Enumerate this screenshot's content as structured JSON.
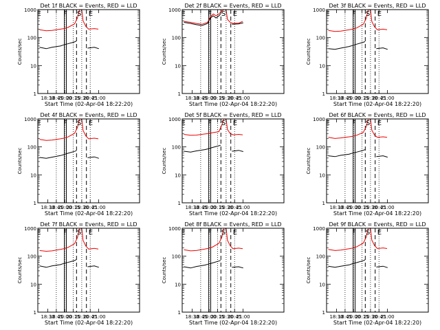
{
  "figure": {
    "xlabel": "Start Time (02-Apr-04 18:22:20)",
    "ylabel": "Counts/sec"
  },
  "axes": {
    "yscale": "log",
    "ylim": [
      1,
      1000
    ],
    "yticks": [
      {
        "value": 1,
        "label": "1"
      },
      {
        "value": 10,
        "label": "10"
      },
      {
        "value": 100,
        "label": "100"
      },
      {
        "value": 1000,
        "label": "1000"
      }
    ],
    "xlim_minutes": [
      -10,
      170
    ],
    "xticks": [
      {
        "label": "18:30",
        "value": 7.7
      },
      {
        "label": "18:45",
        "value": 22.7
      },
      {
        "label": "20:00",
        "value": 37.7
      },
      {
        "label": "20:15",
        "value": 52.7
      },
      {
        "label": "20:30",
        "value": 67.7
      },
      {
        "label": "20:45",
        "value": 82.7
      },
      {
        "label": "21:00",
        "value": 97.7
      }
    ],
    "dotted_lines_at": [
      22.7,
      37.7,
      52.7,
      67.7,
      82.7
    ],
    "solid_lines_at": [
      37.0,
      40.5
    ],
    "dashed_lines_at": [
      58.5,
      76.0
    ]
  },
  "markers": [
    {
      "letter": "E",
      "x": -8
    },
    {
      "letter": "F",
      "x": 38.8
    },
    {
      "letter": "S",
      "x": 63
    },
    {
      "letter": "E",
      "x": 83.5
    }
  ],
  "colors": {
    "events": "#000000",
    "lld": "#ee0000"
  },
  "chart_data": [
    {
      "type": "line",
      "title": "Det 1f BLACK = Events, RED = LLD",
      "series": [
        {
          "x": [
            -7,
            5,
            15,
            30,
            36,
            43,
            55,
            60,
            64,
            66,
            68,
            70,
            75,
            80,
            90,
            97
          ],
          "y": [
            190,
            175,
            180,
            200,
            210,
            230,
            310,
            500,
            1000,
            1000,
            900,
            400,
            250,
            200,
            210,
            200
          ]
        },
        {
          "x": [
            -7,
            5,
            15,
            30,
            36,
            43,
            55,
            58
          ],
          "y": [
            45,
            40,
            45,
            50,
            55,
            60,
            70,
            75
          ]
        },
        {
          "x": [
            78,
            90,
            98
          ],
          "y": [
            42,
            45,
            40
          ]
        }
      ]
    },
    {
      "type": "line",
      "title": "Det 2f BLACK = Events, RED = LLD",
      "series": [
        {
          "x": [
            -7,
            5,
            15,
            25,
            35,
            40,
            45,
            50,
            55,
            60,
            64,
            66,
            68,
            70,
            75,
            80,
            90,
            97
          ],
          "y": [
            380,
            350,
            320,
            300,
            350,
            550,
            700,
            600,
            700,
            900,
            1000,
            1000,
            900,
            450,
            350,
            320,
            330,
            380
          ]
        },
        {
          "x": [
            -7,
            5,
            15,
            25,
            35,
            40,
            45,
            50,
            55,
            58
          ],
          "y": [
            350,
            320,
            290,
            270,
            320,
            500,
            600,
            500,
            600,
            700
          ]
        },
        {
          "x": [
            78,
            90,
            98
          ],
          "y": [
            300,
            310,
            340
          ]
        }
      ]
    },
    {
      "type": "line",
      "title": "Det 3f BLACK = Events, RED = LLD",
      "series": [
        {
          "x": [
            -7,
            5,
            15,
            30,
            36,
            43,
            55,
            60,
            64,
            66,
            68,
            70,
            75,
            80,
            90,
            97
          ],
          "y": [
            180,
            165,
            170,
            190,
            200,
            220,
            300,
            480,
            1000,
            1000,
            900,
            380,
            240,
            190,
            200,
            190
          ]
        },
        {
          "x": [
            -7,
            5,
            15,
            30,
            36,
            43,
            55,
            58
          ],
          "y": [
            40,
            38,
            42,
            48,
            52,
            58,
            68,
            72
          ]
        },
        {
          "x": [
            78,
            90,
            98
          ],
          "y": [
            40,
            43,
            38
          ]
        }
      ]
    },
    {
      "type": "line",
      "title": "Det 4f BLACK = Events, RED = LLD",
      "series": [
        {
          "x": [
            -7,
            5,
            15,
            30,
            36,
            43,
            55,
            60,
            64,
            66,
            68,
            70,
            75,
            80,
            90,
            97
          ],
          "y": [
            185,
            170,
            175,
            195,
            205,
            225,
            305,
            490,
            1000,
            1000,
            900,
            390,
            245,
            195,
            205,
            195
          ]
        },
        {
          "x": [
            -7,
            5,
            15,
            30,
            36,
            43,
            55,
            58
          ],
          "y": [
            42,
            39,
            43,
            49,
            53,
            59,
            69,
            73
          ]
        },
        {
          "x": [
            78,
            90,
            98
          ],
          "y": [
            41,
            44,
            39
          ]
        }
      ]
    },
    {
      "type": "line",
      "title": "Det 5f BLACK = Events, RED = LLD",
      "series": [
        {
          "x": [
            -7,
            5,
            15,
            30,
            36,
            43,
            55,
            60,
            64,
            66,
            68,
            70,
            75,
            80,
            90,
            97
          ],
          "y": [
            280,
            260,
            265,
            290,
            300,
            320,
            350,
            600,
            1000,
            1000,
            900,
            420,
            300,
            270,
            280,
            270
          ]
        },
        {
          "x": [
            -7,
            5,
            15,
            30,
            36,
            43,
            55,
            58
          ],
          "y": [
            70,
            65,
            72,
            80,
            85,
            95,
            110,
            115
          ]
        },
        {
          "x": [
            78,
            90,
            98
          ],
          "y": [
            70,
            75,
            68
          ]
        }
      ]
    },
    {
      "type": "line",
      "title": "Det 6f BLACK = Events, RED = LLD",
      "series": [
        {
          "x": [
            -7,
            5,
            15,
            30,
            36,
            43,
            55,
            60,
            64,
            66,
            68,
            70,
            75,
            80,
            90,
            97
          ],
          "y": [
            220,
            200,
            210,
            230,
            240,
            260,
            330,
            520,
            1000,
            1000,
            900,
            400,
            260,
            220,
            230,
            220
          ]
        },
        {
          "x": [
            -7,
            5,
            15,
            30,
            36,
            43,
            55,
            58
          ],
          "y": [
            48,
            45,
            50,
            55,
            60,
            65,
            75,
            80
          ]
        },
        {
          "x": [
            78,
            90,
            98
          ],
          "y": [
            45,
            48,
            43
          ]
        }
      ]
    },
    {
      "type": "line",
      "title": "Det 7f BLACK = Events, RED = LLD",
      "series": [
        {
          "x": [
            -7,
            5,
            15,
            30,
            36,
            43,
            55,
            60,
            64,
            66,
            68,
            70,
            75,
            80,
            90,
            97
          ],
          "y": [
            160,
            150,
            155,
            175,
            185,
            205,
            280,
            460,
            1000,
            1000,
            900,
            370,
            230,
            180,
            190,
            180
          ]
        },
        {
          "x": [
            -7,
            5,
            15,
            30,
            36,
            43,
            55,
            58
          ],
          "y": [
            45,
            40,
            45,
            50,
            55,
            60,
            70,
            75
          ]
        },
        {
          "x": [
            78,
            90,
            98
          ],
          "y": [
            42,
            45,
            40
          ]
        }
      ]
    },
    {
      "type": "line",
      "title": "Det 8f BLACK = Events, RED = LLD",
      "series": [
        {
          "x": [
            -7,
            5,
            15,
            30,
            36,
            43,
            55,
            60,
            64,
            66,
            68,
            70,
            75,
            80,
            90,
            97
          ],
          "y": [
            170,
            155,
            160,
            180,
            190,
            210,
            290,
            470,
            1000,
            1000,
            900,
            375,
            235,
            185,
            195,
            185
          ]
        },
        {
          "x": [
            -7,
            5,
            15,
            30,
            36,
            43,
            55,
            58
          ],
          "y": [
            42,
            38,
            43,
            48,
            52,
            57,
            67,
            71
          ]
        },
        {
          "x": [
            78,
            90,
            98
          ],
          "y": [
            40,
            42,
            38
          ]
        }
      ]
    },
    {
      "type": "line",
      "title": "Det 9f BLACK = Events, RED = LLD",
      "series": [
        {
          "x": [
            -7,
            5,
            15,
            30,
            36,
            43,
            55,
            60,
            64,
            66,
            68,
            70,
            75,
            80,
            90,
            97
          ],
          "y": [
            175,
            160,
            165,
            185,
            195,
            215,
            295,
            475,
            1000,
            1000,
            900,
            380,
            238,
            188,
            198,
            188
          ]
        },
        {
          "x": [
            -7,
            5,
            15,
            30,
            36,
            43,
            55,
            58
          ],
          "y": [
            44,
            40,
            44,
            49,
            54,
            59,
            69,
            74
          ]
        },
        {
          "x": [
            78,
            90,
            98
          ],
          "y": [
            41,
            44,
            39
          ]
        }
      ]
    }
  ]
}
